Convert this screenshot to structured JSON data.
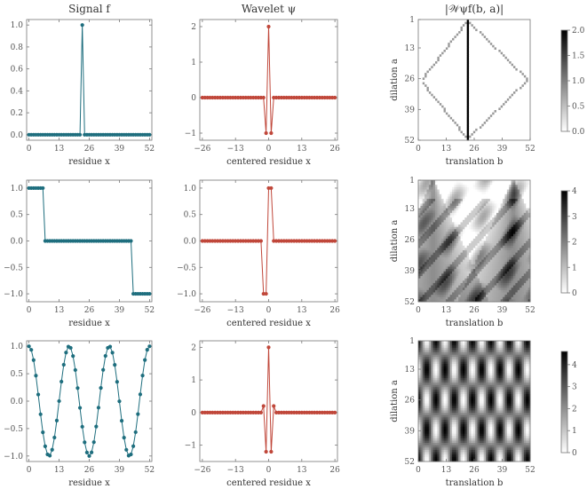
{
  "colors": {
    "signal": "#1e6e7e",
    "wavelet": "#c0473a",
    "axis": "#777777",
    "text": "#333333"
  },
  "chart_data": [
    {
      "panel": "signal-delta",
      "type": "line",
      "title": "Signal f",
      "xlabel": "residue x",
      "ylabel": "",
      "xlim": [
        -1,
        53
      ],
      "ylim": [
        -0.05,
        1.05
      ],
      "xticks": [
        0,
        13,
        26,
        39,
        52
      ],
      "yticks": [
        0.0,
        0.2,
        0.4,
        0.6,
        0.8,
        1.0
      ],
      "ytick_labels": [
        "0.0",
        "0.2",
        "0.4",
        "0.6",
        "0.8",
        "1.0"
      ],
      "gen": {
        "kind": "delta",
        "n": 53,
        "at": 23,
        "value": 1
      }
    },
    {
      "panel": "wavelet-1",
      "type": "line",
      "title": "Wavelet ψ",
      "xlabel": "centered residue x",
      "ylabel": "",
      "xlim": [
        -27,
        27
      ],
      "ylim": [
        -1.2,
        2.2
      ],
      "xticks": [
        -26,
        -13,
        0,
        13,
        26
      ],
      "yticks": [
        -1,
        0,
        1,
        2
      ],
      "ytick_labels": [
        "−1",
        "0",
        "1",
        "2"
      ],
      "gen": {
        "kind": "sparse",
        "from": -26,
        "to": 26,
        "nonzero": {
          "-1": -1,
          "0": 2,
          "1": -1
        }
      }
    },
    {
      "panel": "cwt-1",
      "type": "heatmap",
      "title": "|𝒲ψf(b, a)|",
      "xlabel": "translation b",
      "ylabel": "dilation a",
      "xlim": [
        0,
        52
      ],
      "ylim": [
        1,
        52
      ],
      "xticks": [
        0,
        13,
        26,
        39,
        52
      ],
      "yticks": [
        1,
        13,
        26,
        39,
        52
      ],
      "colorbar": {
        "min": 0,
        "max": 2,
        "ticks": [
          0.0,
          0.5,
          1.0,
          1.5,
          2.0
        ],
        "labels": [
          "0.0",
          "0.5",
          "1.0",
          "1.5",
          "2.0"
        ]
      },
      "gen": {
        "kind": "delta_cwt",
        "center": 23
      }
    },
    {
      "panel": "signal-steps",
      "type": "line",
      "title": "",
      "xlabel": "residue x",
      "ylabel": "",
      "xlim": [
        -1,
        53
      ],
      "ylim": [
        -1.15,
        1.15
      ],
      "xticks": [
        0,
        13,
        26,
        39,
        52
      ],
      "yticks": [
        -1.0,
        -0.5,
        0.0,
        0.5,
        1.0
      ],
      "ytick_labels": [
        "−1.0",
        "−0.5",
        "0.0",
        "0.5",
        "1.0"
      ],
      "gen": {
        "kind": "steps",
        "n": 53,
        "segments": [
          [
            0,
            6,
            1
          ],
          [
            7,
            44,
            0
          ],
          [
            45,
            52,
            -1
          ]
        ]
      }
    },
    {
      "panel": "wavelet-2",
      "type": "line",
      "title": "",
      "xlabel": "centered residue x",
      "ylabel": "",
      "xlim": [
        -27,
        27
      ],
      "ylim": [
        -1.15,
        1.15
      ],
      "xticks": [
        -26,
        -13,
        0,
        13,
        26
      ],
      "yticks": [
        -1.0,
        -0.5,
        0.0,
        0.5,
        1.0
      ],
      "ytick_labels": [
        "−1.0",
        "−0.5",
        "0.0",
        "0.5",
        "1.0"
      ],
      "gen": {
        "kind": "sparse",
        "from": -26,
        "to": 26,
        "nonzero": {
          "-2": -1,
          "-1": -1,
          "0": 1,
          "1": 1
        }
      }
    },
    {
      "panel": "cwt-2",
      "type": "heatmap",
      "title": "",
      "xlabel": "translation b",
      "ylabel": "dilation a",
      "xlim": [
        0,
        52
      ],
      "ylim": [
        1,
        52
      ],
      "xticks": [
        0,
        13,
        26,
        39,
        52
      ],
      "yticks": [
        1,
        13,
        26,
        39,
        52
      ],
      "colorbar": {
        "min": 0,
        "max": 4,
        "ticks": [
          0,
          1,
          2,
          3,
          4
        ],
        "labels": [
          "0",
          "1",
          "2",
          "3",
          "4"
        ]
      },
      "gen": {
        "kind": "step_cwt",
        "jumps": [
          [
            6.5,
            -1
          ],
          [
            44.5,
            -1
          ]
        ]
      }
    },
    {
      "panel": "signal-cosine",
      "type": "line",
      "title": "",
      "xlabel": "residue x",
      "ylabel": "",
      "xlim": [
        -1,
        53
      ],
      "ylim": [
        -1.1,
        1.1
      ],
      "xticks": [
        0,
        13,
        26,
        39,
        52
      ],
      "yticks": [
        -1.0,
        -0.5,
        0.0,
        0.5,
        1.0
      ],
      "ytick_labels": [
        "−1.0",
        "−0.5",
        "0.0",
        "0.5",
        "1.0"
      ],
      "gen": {
        "kind": "cos",
        "n": 53,
        "period": 17.33
      }
    },
    {
      "panel": "wavelet-3",
      "type": "line",
      "title": "",
      "xlabel": "centered residue x",
      "ylabel": "",
      "xlim": [
        -27,
        27
      ],
      "ylim": [
        -1.5,
        2.2
      ],
      "xticks": [
        -26,
        -13,
        0,
        13,
        26
      ],
      "yticks": [
        -1,
        0,
        1,
        2
      ],
      "ytick_labels": [
        "−1",
        "0",
        "1",
        "2"
      ],
      "gen": {
        "kind": "sparse",
        "from": -26,
        "to": 26,
        "nonzero": {
          "-2": 0.2,
          "-1": -1.2,
          "0": 2,
          "1": -1.2,
          "2": 0.2
        }
      }
    },
    {
      "panel": "cwt-3",
      "type": "heatmap",
      "title": "",
      "xlabel": "translation b",
      "ylabel": "dilation a",
      "xlim": [
        0,
        52
      ],
      "ylim": [
        1,
        52
      ],
      "xticks": [
        0,
        13,
        26,
        39,
        52
      ],
      "yticks": [
        1,
        13,
        26,
        39,
        52
      ],
      "colorbar": {
        "min": 0,
        "max": 4.6,
        "ticks": [
          0,
          1,
          2,
          3,
          4
        ],
        "labels": [
          "0",
          "1",
          "2",
          "3",
          "4"
        ]
      },
      "gen": {
        "kind": "cos_cwt",
        "period_b": 8.67,
        "period_a": 26
      }
    }
  ]
}
